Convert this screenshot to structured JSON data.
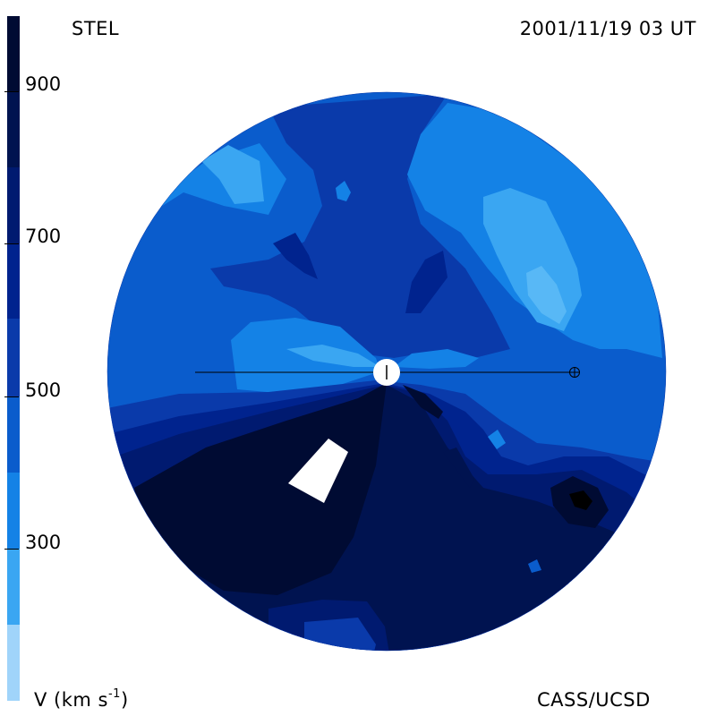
{
  "header": {
    "title_left": "STEL",
    "title_right": "2001/11/19 03 UT"
  },
  "footer": {
    "unit_prefix": "V (km s",
    "unit_sup": "-1",
    "unit_suffix": ")",
    "credit": "CASS/UCSD"
  },
  "colorbar": {
    "ticks": [
      {
        "value": 900,
        "label": "900"
      },
      {
        "value": 700,
        "label": "700"
      },
      {
        "value": 500,
        "label": "500"
      },
      {
        "value": 300,
        "label": "300"
      }
    ],
    "bands": [
      {
        "from": 900,
        "to": 1000,
        "color": "#000b33"
      },
      {
        "from": 800,
        "to": 900,
        "color": "#001350"
      },
      {
        "from": 700,
        "to": 800,
        "color": "#001a70"
      },
      {
        "from": 600,
        "to": 700,
        "color": "#00238e"
      },
      {
        "from": 500,
        "to": 600,
        "color": "#0a3aaa"
      },
      {
        "from": 400,
        "to": 500,
        "color": "#0a5ccc"
      },
      {
        "from": 300,
        "to": 400,
        "color": "#1482e6"
      },
      {
        "from": 200,
        "to": 300,
        "color": "#3aa6f2"
      },
      {
        "from": 100,
        "to": 200,
        "color": "#a0d4fa"
      }
    ]
  },
  "colors": {
    "v400": "#0a5ccc",
    "v500": "#0a3aaa",
    "v300": "#1482e6",
    "v200": "#3aa6f2",
    "v600": "#001a70",
    "v700": "#001350",
    "v900": "#000b33"
  },
  "markers": {
    "sun": "sun-icon",
    "earth": "earth-icon"
  }
}
